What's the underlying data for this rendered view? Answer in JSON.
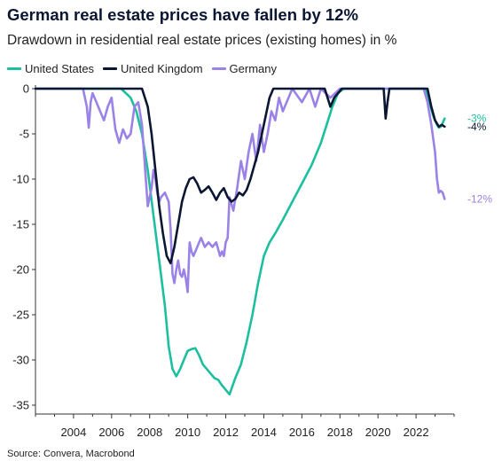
{
  "header": {
    "title": "German real estate prices have fallen by 12%",
    "subtitle": "Drawdown in residential real estate prices (existing homes) in %"
  },
  "footer": {
    "source": "Source: Convera, Macrobond"
  },
  "chart_data": {
    "type": "line",
    "title": "German real estate prices have fallen by 12%",
    "subtitle": "Drawdown in residential real estate prices (existing homes) in %",
    "xlabel": "",
    "ylabel": "",
    "xlim": [
      2002.0,
      2024.0
    ],
    "ylim": [
      -35.0,
      0.0
    ],
    "x_ticks": [
      2004,
      2006,
      2008,
      2010,
      2012,
      2014,
      2016,
      2018,
      2020,
      2022
    ],
    "x_tick_labels": [
      "2004",
      "2006",
      "2008",
      "2010",
      "2012",
      "2014",
      "2016",
      "2018",
      "2020",
      "2022"
    ],
    "y_ticks": [
      0,
      -5,
      -10,
      -15,
      -20,
      -25,
      -30,
      -35
    ],
    "y_tick_labels": [
      "0",
      "-5",
      "-10",
      "-15",
      "-20",
      "-25",
      "-30",
      "-35"
    ],
    "grid": false,
    "legend_position": "top-left",
    "series": [
      {
        "name": "United States",
        "color": "#1dbf9f",
        "end_label": "-3%",
        "x": [
          2002.0,
          2006.5,
          2007.0,
          2007.3,
          2007.6,
          2007.9,
          2008.2,
          2008.5,
          2008.8,
          2009.0,
          2009.2,
          2009.4,
          2009.6,
          2009.8,
          2010.0,
          2010.2,
          2010.4,
          2010.6,
          2010.8,
          2011.0,
          2011.2,
          2011.4,
          2011.6,
          2011.8,
          2012.0,
          2012.2,
          2012.5,
          2012.8,
          2013.1,
          2013.4,
          2013.7,
          2014.0,
          2014.3,
          2014.6,
          2015.0,
          2015.5,
          2016.0,
          2016.5,
          2017.0,
          2017.3,
          2017.6,
          2017.9,
          2018.2,
          2022.5,
          2022.7,
          2022.9,
          2023.1,
          2023.2,
          2023.3,
          2023.4,
          2023.5
        ],
        "y": [
          0.0,
          0.0,
          -1.0,
          -2.5,
          -5.0,
          -9.0,
          -14.0,
          -19.0,
          -24.0,
          -28.5,
          -31.0,
          -31.8,
          -31.0,
          -30.0,
          -29.0,
          -28.8,
          -28.7,
          -29.5,
          -30.5,
          -31.0,
          -31.5,
          -32.0,
          -32.2,
          -32.8,
          -33.3,
          -33.8,
          -32.0,
          -30.5,
          -28.0,
          -25.0,
          -21.5,
          -18.5,
          -17.0,
          -16.0,
          -14.5,
          -12.5,
          -10.5,
          -8.5,
          -6.0,
          -4.0,
          -2.0,
          -0.5,
          0.0,
          0.0,
          -1.5,
          -3.0,
          -4.0,
          -4.3,
          -4.2,
          -3.8,
          -3.3
        ]
      },
      {
        "name": "United Kingdom",
        "color": "#0b1633",
        "end_label": "-4%",
        "x": [
          2002.0,
          2007.6,
          2007.9,
          2008.1,
          2008.3,
          2008.5,
          2008.7,
          2008.9,
          2009.1,
          2009.3,
          2009.5,
          2009.7,
          2009.9,
          2010.1,
          2010.3,
          2010.5,
          2010.7,
          2010.9,
          2011.1,
          2011.3,
          2011.5,
          2011.7,
          2011.9,
          2012.1,
          2012.3,
          2012.5,
          2012.7,
          2012.9,
          2013.1,
          2013.3,
          2013.5,
          2013.7,
          2013.9,
          2014.1,
          2014.3,
          2014.5,
          2017.2,
          2017.5,
          2017.7,
          2017.9,
          2018.1,
          2020.3,
          2020.4,
          2020.5,
          2020.6,
          2020.8,
          2022.6,
          2022.8,
          2023.0,
          2023.2,
          2023.35,
          2023.5
        ],
        "y": [
          0.0,
          0.0,
          -2.0,
          -5.0,
          -9.0,
          -13.0,
          -16.0,
          -18.5,
          -19.3,
          -17.5,
          -15.0,
          -12.5,
          -11.0,
          -10.0,
          -9.8,
          -10.5,
          -11.5,
          -11.2,
          -10.8,
          -11.5,
          -12.3,
          -11.5,
          -11.0,
          -12.0,
          -12.5,
          -12.2,
          -11.5,
          -11.8,
          -11.2,
          -10.0,
          -8.5,
          -7.0,
          -5.0,
          -3.0,
          -1.0,
          0.0,
          0.0,
          -2.0,
          -1.0,
          -0.5,
          0.0,
          0.0,
          -3.3,
          -1.5,
          0.0,
          0.0,
          0.0,
          -2.0,
          -3.5,
          -4.2,
          -4.0,
          -4.2
        ]
      },
      {
        "name": "Germany",
        "color": "#9a82e6",
        "end_label": "-12%",
        "x": [
          2002.0,
          2004.5,
          2004.7,
          2004.8,
          2004.9,
          2005.0,
          2005.2,
          2005.4,
          2005.6,
          2005.8,
          2006.0,
          2006.2,
          2006.4,
          2006.6,
          2006.8,
          2007.0,
          2007.2,
          2007.4,
          2007.6,
          2007.7,
          2007.8,
          2007.9,
          2008.0,
          2008.1,
          2008.2,
          2008.3,
          2008.4,
          2008.5,
          2008.6,
          2008.8,
          2009.0,
          2009.1,
          2009.2,
          2009.3,
          2009.4,
          2009.5,
          2009.6,
          2009.7,
          2009.8,
          2009.9,
          2010.0,
          2010.1,
          2010.2,
          2010.3,
          2010.5,
          2010.7,
          2010.9,
          2011.1,
          2011.3,
          2011.5,
          2011.7,
          2011.8,
          2011.9,
          2012.0,
          2012.1,
          2012.2,
          2012.4,
          2012.6,
          2012.8,
          2013.0,
          2013.2,
          2013.4,
          2013.6,
          2013.8,
          2014.0,
          2014.2,
          2014.4,
          2014.6,
          2014.8,
          2015.0,
          2015.5,
          2016.0,
          2016.4,
          2016.7,
          2017.0,
          2017.5,
          2018.0,
          2022.4,
          2022.6,
          2022.8,
          2023.0,
          2023.1,
          2023.2,
          2023.3,
          2023.4,
          2023.5
        ],
        "y": [
          0.0,
          0.0,
          -2.0,
          -4.3,
          -1.5,
          -0.5,
          -1.5,
          -2.5,
          -3.5,
          -2.0,
          -1.0,
          -4.5,
          -6.0,
          -4.5,
          -5.5,
          -5.0,
          -2.0,
          -1.5,
          -4.0,
          -7.0,
          -10.0,
          -13.0,
          -12.0,
          -11.0,
          -9.0,
          -10.0,
          -11.5,
          -12.5,
          -12.0,
          -11.5,
          -12.5,
          -15.5,
          -20.5,
          -21.5,
          -20.0,
          -19.0,
          -20.5,
          -20.8,
          -20.0,
          -21.0,
          -22.5,
          -17.0,
          -18.0,
          -18.5,
          -17.5,
          -16.5,
          -17.5,
          -17.0,
          -17.5,
          -17.0,
          -18.5,
          -18.0,
          -18.5,
          -17.0,
          -16.5,
          -12.0,
          -13.5,
          -11.0,
          -8.0,
          -10.0,
          -7.0,
          -5.0,
          -8.0,
          -4.0,
          -7.0,
          -5.0,
          -2.5,
          -3.5,
          -1.0,
          -2.5,
          0.0,
          -1.5,
          0.0,
          -2.0,
          0.0,
          -1.0,
          0.0,
          0.0,
          -1.5,
          -4.0,
          -7.0,
          -10.0,
          -11.5,
          -11.3,
          -11.5,
          -12.2
        ]
      }
    ]
  }
}
